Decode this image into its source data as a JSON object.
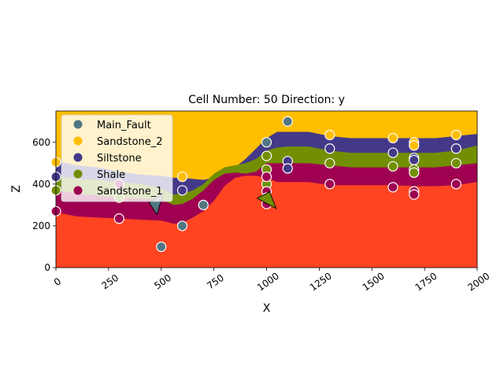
{
  "chart_data": {
    "type": "section",
    "title": "Cell Number: 50 Direction: y",
    "xlabel": "X",
    "ylabel": "Z",
    "xlim": [
      0,
      2000
    ],
    "ylim": [
      0,
      750
    ],
    "xticks": [
      {
        "value": 0,
        "label": "0"
      },
      {
        "value": 250,
        "label": "250"
      },
      {
        "value": 500,
        "label": "500"
      },
      {
        "value": 750,
        "label": "750"
      },
      {
        "value": 1000,
        "label": "1000"
      },
      {
        "value": 1250,
        "label": "1250"
      },
      {
        "value": 1500,
        "label": "1500"
      },
      {
        "value": 1750,
        "label": "1750"
      },
      {
        "value": 2000,
        "label": "2000"
      }
    ],
    "yticks": [
      {
        "value": 0,
        "label": "0"
      },
      {
        "value": 200,
        "label": "200"
      },
      {
        "value": 400,
        "label": "400"
      },
      {
        "value": 600,
        "label": "600"
      }
    ],
    "legend_position": "upper-left",
    "colors": {
      "basement": "#ff4422",
      "Main_Fault": "#527682",
      "Sandstone_2": "#ffbe00",
      "Siltstone": "#443988",
      "Shale": "#728f02",
      "Sandstone_1": "#9f0052"
    },
    "legend": [
      {
        "name": "Main_Fault",
        "color": "#527682"
      },
      {
        "name": "Sandstone_2",
        "color": "#ffbe00"
      },
      {
        "name": "Siltstone",
        "color": "#443988"
      },
      {
        "name": "Shale",
        "color": "#728f02"
      },
      {
        "name": "Sandstone_1",
        "color": "#9f0052"
      }
    ],
    "boundaries": {
      "x": [
        0,
        100,
        200,
        300,
        400,
        500,
        560,
        600,
        650,
        700,
        750,
        800,
        850,
        900,
        950,
        1000,
        1050,
        1100,
        1200,
        1300,
        1400,
        1500,
        1600,
        1700,
        1800,
        1900,
        2000
      ],
      "top_sandstone_1": [
        265,
        245,
        240,
        235,
        230,
        225,
        210,
        215,
        240,
        270,
        320,
        390,
        430,
        440,
        440,
        430,
        410,
        410,
        410,
        395,
        395,
        395,
        395,
        390,
        390,
        395,
        410
      ],
      "top_shale": [
        370,
        355,
        345,
        335,
        330,
        325,
        300,
        305,
        330,
        370,
        420,
        450,
        455,
        450,
        460,
        500,
        500,
        500,
        500,
        490,
        480,
        480,
        480,
        480,
        480,
        490,
        500
      ],
      "top_siltstone": [
        440,
        425,
        420,
        410,
        400,
        380,
        350,
        355,
        370,
        400,
        450,
        480,
        490,
        500,
        520,
        560,
        575,
        580,
        580,
        560,
        550,
        550,
        550,
        550,
        550,
        560,
        585
      ],
      "top_sandstone_2": [
        510,
        490,
        480,
        460,
        445,
        440,
        430,
        430,
        425,
        420,
        430,
        460,
        480,
        520,
        570,
        620,
        650,
        650,
        650,
        630,
        620,
        620,
        620,
        620,
        620,
        630,
        640
      ]
    },
    "points": [
      {
        "series": "Main_Fault",
        "x": 500,
        "y": 100
      },
      {
        "series": "Main_Fault",
        "x": 600,
        "y": 200
      },
      {
        "series": "Main_Fault",
        "x": 700,
        "y": 300
      },
      {
        "series": "Main_Fault",
        "x": 1000,
        "y": 600
      },
      {
        "series": "Main_Fault",
        "x": 1100,
        "y": 700
      },
      {
        "series": "Sandstone_2",
        "x": 0,
        "y": 505
      },
      {
        "series": "Sandstone_2",
        "x": 600,
        "y": 435
      },
      {
        "series": "Sandstone_2",
        "x": 1300,
        "y": 635
      },
      {
        "series": "Sandstone_2",
        "x": 1600,
        "y": 620
      },
      {
        "series": "Sandstone_2",
        "x": 1700,
        "y": 600
      },
      {
        "series": "Sandstone_2",
        "x": 1700,
        "y": 585
      },
      {
        "series": "Sandstone_2",
        "x": 1900,
        "y": 635
      },
      {
        "series": "Siltstone",
        "x": 0,
        "y": 435
      },
      {
        "series": "Siltstone",
        "x": 600,
        "y": 370
      },
      {
        "series": "Siltstone",
        "x": 1100,
        "y": 510
      },
      {
        "series": "Siltstone",
        "x": 1100,
        "y": 475
      },
      {
        "series": "Siltstone",
        "x": 1300,
        "y": 570
      },
      {
        "series": "Siltstone",
        "x": 1600,
        "y": 550
      },
      {
        "series": "Siltstone",
        "x": 1700,
        "y": 525
      },
      {
        "series": "Siltstone",
        "x": 1700,
        "y": 515
      },
      {
        "series": "Siltstone",
        "x": 1900,
        "y": 570
      },
      {
        "series": "Shale",
        "x": 0,
        "y": 370
      },
      {
        "series": "Shale",
        "x": 300,
        "y": 335
      },
      {
        "series": "Shale",
        "x": 1000,
        "y": 535
      },
      {
        "series": "Shale",
        "x": 1000,
        "y": 470
      },
      {
        "series": "Shale",
        "x": 1000,
        "y": 400
      },
      {
        "series": "Shale",
        "x": 1300,
        "y": 500
      },
      {
        "series": "Shale",
        "x": 1600,
        "y": 485
      },
      {
        "series": "Shale",
        "x": 1700,
        "y": 470
      },
      {
        "series": "Shale",
        "x": 1700,
        "y": 455
      },
      {
        "series": "Shale",
        "x": 1900,
        "y": 500
      },
      {
        "series": "Sandstone_1",
        "x": 0,
        "y": 270
      },
      {
        "series": "Sandstone_1",
        "x": 300,
        "y": 235
      },
      {
        "series": "Sandstone_1",
        "x": 300,
        "y": 400
      },
      {
        "series": "Sandstone_1",
        "x": 1000,
        "y": 435
      },
      {
        "series": "Sandstone_1",
        "x": 1000,
        "y": 365
      },
      {
        "series": "Sandstone_1",
        "x": 1000,
        "y": 335
      },
      {
        "series": "Sandstone_1",
        "x": 1000,
        "y": 305
      },
      {
        "series": "Sandstone_1",
        "x": 1300,
        "y": 400
      },
      {
        "series": "Sandstone_1",
        "x": 1600,
        "y": 385
      },
      {
        "series": "Sandstone_1",
        "x": 1700,
        "y": 365
      },
      {
        "series": "Sandstone_1",
        "x": 1700,
        "y": 350
      },
      {
        "series": "Sandstone_1",
        "x": 1900,
        "y": 400
      }
    ],
    "orientations": [
      {
        "series": "Main_Fault",
        "x": 480,
        "y": 300,
        "dip_direction": "upper-left"
      },
      {
        "series": "Shale",
        "x": 1000,
        "y": 325,
        "dip_direction": "right"
      }
    ]
  }
}
